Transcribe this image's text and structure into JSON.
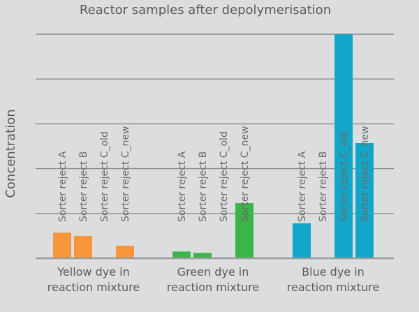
{
  "chart_data": {
    "type": "bar",
    "title": "Reactor samples after depolymerisation",
    "xlabel": "",
    "ylabel": "Concentration",
    "ylim": [
      0,
      5
    ],
    "grid": true,
    "legend": "none",
    "categories": [
      {
        "line1": "Yellow dye in",
        "line2": "reaction mixture"
      },
      {
        "line1": "Green dye in",
        "line2": "reaction mixture"
      },
      {
        "line1": "Blue dye in",
        "line2": "reaction mixture"
      }
    ],
    "series": [
      {
        "name": "Sorter reject A",
        "values": [
          0.57,
          0.15,
          0.78
        ]
      },
      {
        "name": "Sorter reject B",
        "values": [
          0.5,
          0.12,
          0
        ]
      },
      {
        "name": "Sorter reject C_old",
        "values": [
          0.02,
          0.02,
          5.0
        ]
      },
      {
        "name": "Sorter reject C_new",
        "values": [
          0.28,
          1.23,
          2.57
        ]
      }
    ],
    "colors": [
      "#f7963a",
      "#3ab54a",
      "#12a6c9"
    ]
  }
}
